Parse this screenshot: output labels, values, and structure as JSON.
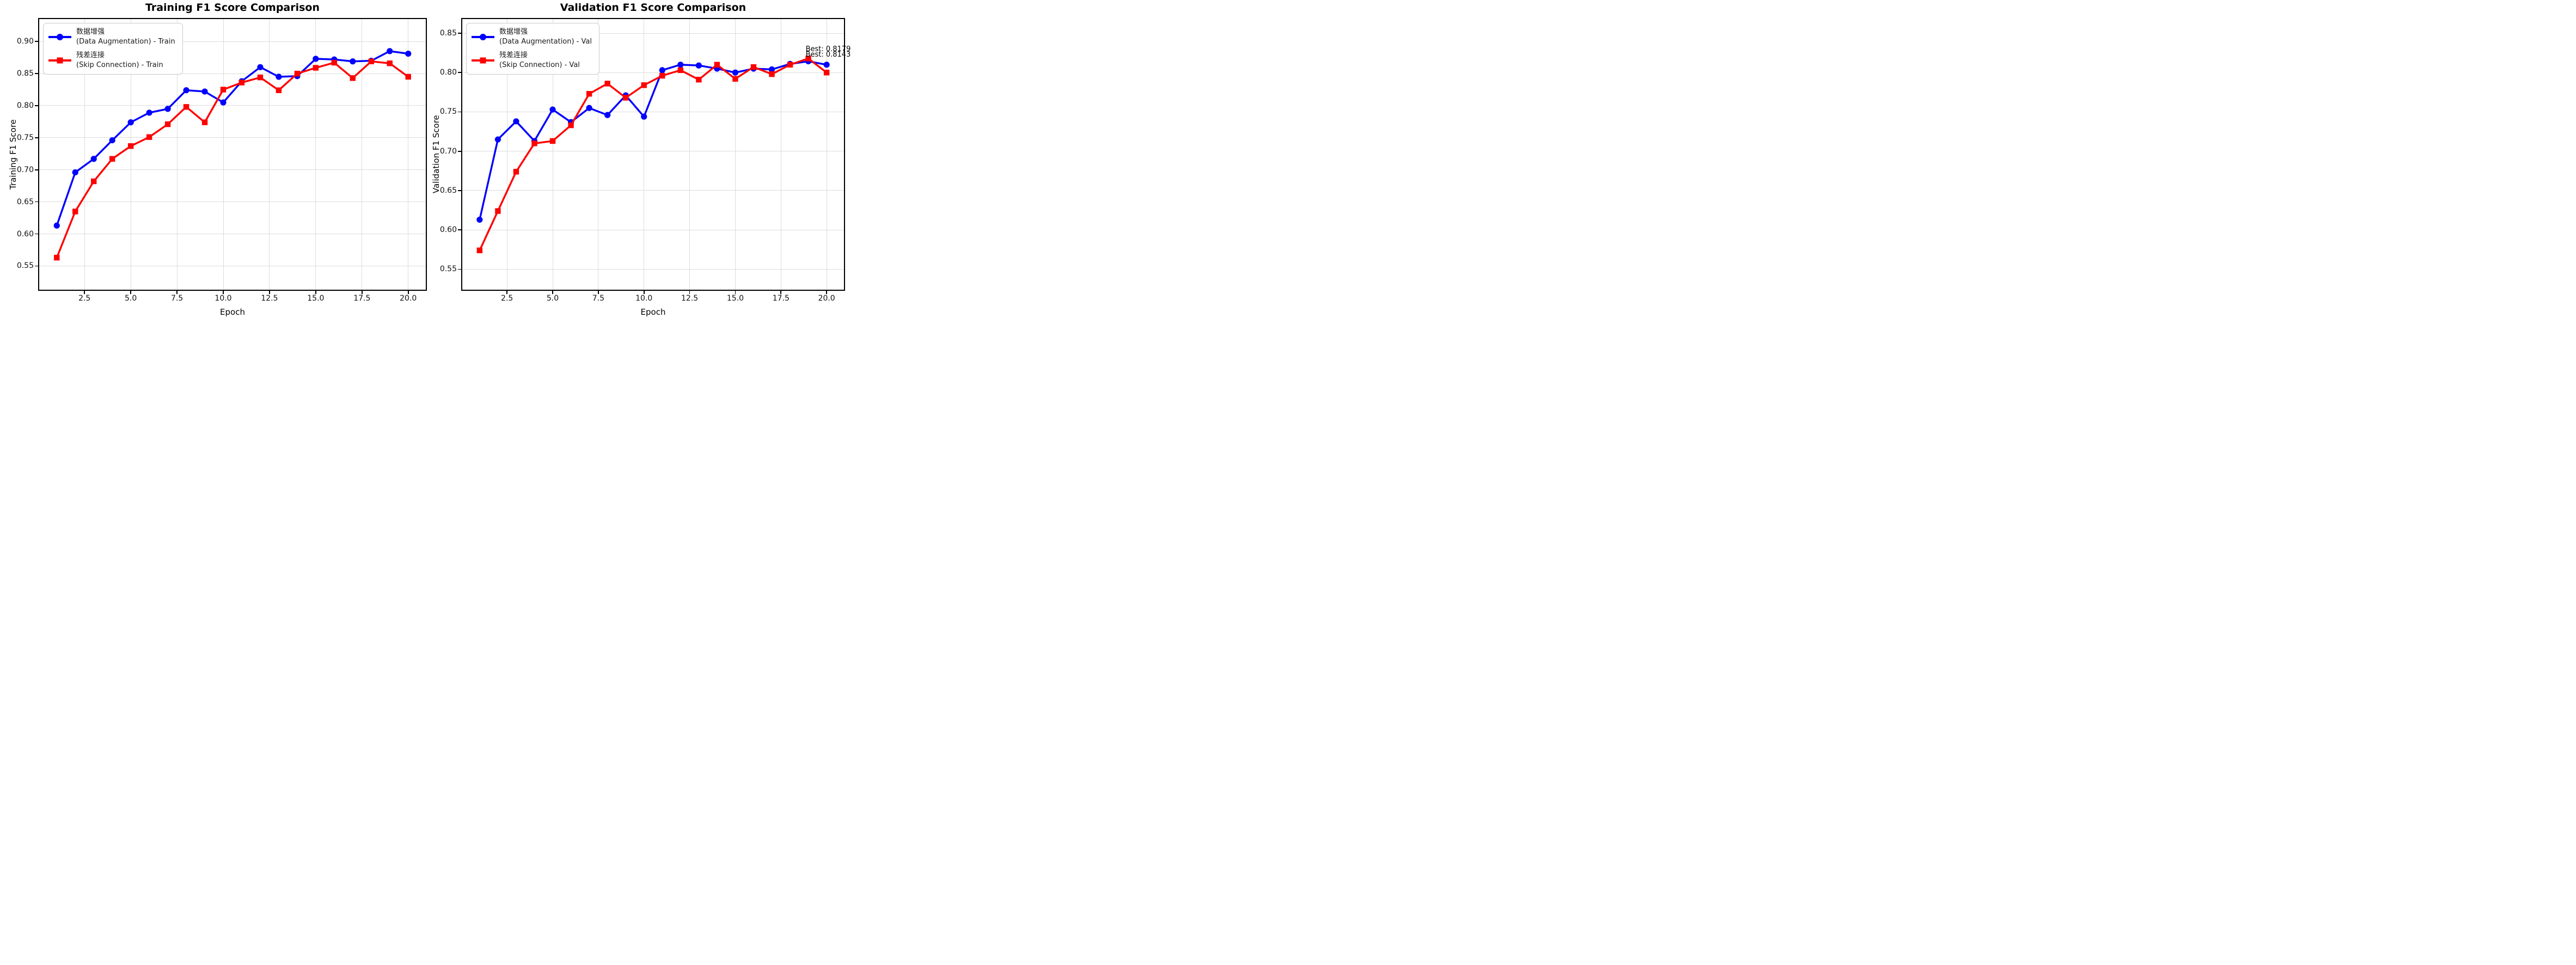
{
  "page": {
    "background": "#ffffff"
  },
  "chart_data": [
    {
      "type": "line",
      "title": "Training F1 Score Comparison",
      "xlabel": "Epoch",
      "ylabel": "Training F1 Score",
      "x": [
        1,
        2,
        3,
        4,
        5,
        6,
        7,
        8,
        9,
        10,
        11,
        12,
        13,
        14,
        15,
        16,
        17,
        18,
        19,
        20
      ],
      "series": [
        {
          "name": "数据增强 (Data Augmentation) - Train",
          "legend_lines": [
            "数据增强",
            "(Data Augmentation) - Train"
          ],
          "color": "#0000ff",
          "marker": "circle",
          "values": [
            0.613,
            0.696,
            0.717,
            0.746,
            0.774,
            0.789,
            0.795,
            0.824,
            0.822,
            0.805,
            0.838,
            0.86,
            0.845,
            0.846,
            0.873,
            0.872,
            0.869,
            0.87,
            0.885,
            0.881
          ]
        },
        {
          "name": "残差连接 (Skip Connection) - Train",
          "legend_lines": [
            "残差连接",
            "(Skip Connection) - Train"
          ],
          "color": "#ff0000",
          "marker": "square",
          "values": [
            0.563,
            0.635,
            0.682,
            0.717,
            0.737,
            0.751,
            0.771,
            0.798,
            0.774,
            0.825,
            0.836,
            0.844,
            0.824,
            0.85,
            0.859,
            0.867,
            0.843,
            0.869,
            0.866,
            0.845
          ]
        }
      ],
      "xlim": [
        0.05,
        20.95
      ],
      "ylim": [
        0.513,
        0.935
      ],
      "xticks": [
        2.5,
        5,
        7.5,
        10,
        12.5,
        15,
        17.5,
        20
      ],
      "xtick_labels": [
        "2.5",
        "5.0",
        "7.5",
        "10.0",
        "12.5",
        "15.0",
        "17.5",
        "20.0"
      ],
      "yticks": [
        0.55,
        0.6,
        0.65,
        0.7,
        0.75,
        0.8,
        0.85,
        0.9
      ],
      "ytick_labels": [
        "0.55",
        "0.60",
        "0.65",
        "0.70",
        "0.75",
        "0.80",
        "0.85",
        "0.90"
      ],
      "grid": true,
      "legend_position": "upper-left",
      "annotations": []
    },
    {
      "type": "line",
      "title": "Validation F1 Score Comparison",
      "xlabel": "Epoch",
      "ylabel": "Validation F1 Score",
      "x": [
        1,
        2,
        3,
        4,
        5,
        6,
        7,
        8,
        9,
        10,
        11,
        12,
        13,
        14,
        15,
        16,
        17,
        18,
        19,
        20
      ],
      "series": [
        {
          "name": "数据增强 (Data Augmentation) - Val",
          "legend_lines": [
            "数据增强",
            "(Data Augmentation) - Val"
          ],
          "color": "#0000ff",
          "marker": "circle",
          "values": [
            0.613,
            0.715,
            0.738,
            0.713,
            0.753,
            0.737,
            0.755,
            0.746,
            0.771,
            0.744,
            0.803,
            0.81,
            0.809,
            0.805,
            0.8,
            0.805,
            0.804,
            0.811,
            0.8143,
            0.81
          ]
        },
        {
          "name": "残差连接 (Skip Connection) - Val",
          "legend_lines": [
            "残差连接",
            "(Skip Connection) - Val"
          ],
          "color": "#ff0000",
          "marker": "square",
          "values": [
            0.574,
            0.624,
            0.674,
            0.71,
            0.713,
            0.733,
            0.773,
            0.786,
            0.768,
            0.784,
            0.796,
            0.803,
            0.791,
            0.81,
            0.792,
            0.807,
            0.798,
            0.81,
            0.8179,
            0.8
          ]
        }
      ],
      "xlim": [
        0.05,
        20.95
      ],
      "ylim": [
        0.524,
        0.868
      ],
      "xticks": [
        2.5,
        5,
        7.5,
        10,
        12.5,
        15,
        17.5,
        20
      ],
      "xtick_labels": [
        "2.5",
        "5.0",
        "7.5",
        "10.0",
        "12.5",
        "15.0",
        "17.5",
        "20.0"
      ],
      "yticks": [
        0.55,
        0.6,
        0.65,
        0.7,
        0.75,
        0.8,
        0.85
      ],
      "ytick_labels": [
        "0.55",
        "0.60",
        "0.65",
        "0.70",
        "0.75",
        "0.80",
        "0.85"
      ],
      "grid": true,
      "legend_position": "upper-left",
      "annotations": [
        {
          "text": "Best: 0.8179",
          "x": 18.85,
          "y": 0.8285
        },
        {
          "text": "Best: 0.8143",
          "x": 18.85,
          "y": 0.8215
        }
      ]
    }
  ]
}
